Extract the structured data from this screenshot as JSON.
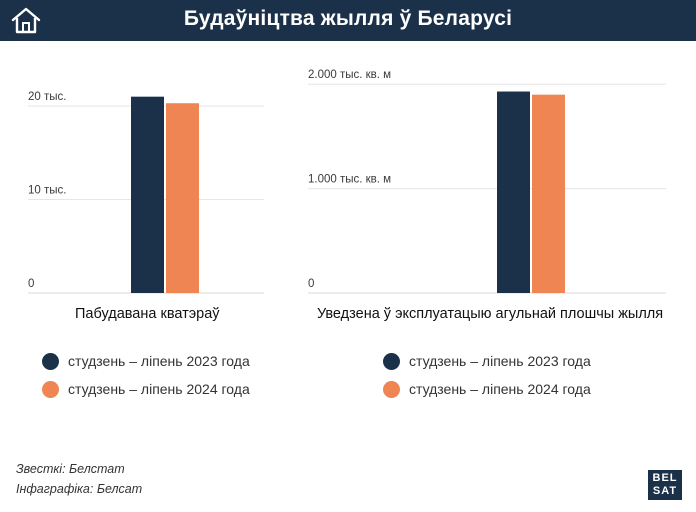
{
  "header": {
    "title": "Будаўніцтва жылля ў Беларусі",
    "home_icon": "home-icon"
  },
  "colors": {
    "header_bg": "#1b3149",
    "series_2023": "#1b3149",
    "series_2024": "#ee8552"
  },
  "chart_data": [
    {
      "type": "bar",
      "title": "Пабудавана кватэраў",
      "categories": [
        ""
      ],
      "series": [
        {
          "name": "студзень – ліпень 2023 года",
          "values": [
            21000
          ]
        },
        {
          "name": "студзень – ліпень 2024 года",
          "values": [
            20300
          ]
        }
      ],
      "ylim": [
        0,
        21500
      ],
      "yticks": [
        0,
        10000,
        20000
      ],
      "ytick_labels": [
        "0",
        "10 тыс.",
        "20 тыс."
      ],
      "xlabel": "",
      "ylabel": "",
      "grid": true
    },
    {
      "type": "bar",
      "title": "Уведзена ў эксплуатацыю агульнай плошчы жылля",
      "categories": [
        ""
      ],
      "series": [
        {
          "name": "студзень – ліпень 2023 года",
          "values": [
            1930
          ]
        },
        {
          "name": "студзень – ліпень 2024 года",
          "values": [
            1900
          ]
        }
      ],
      "ylim": [
        0,
        2050
      ],
      "yticks": [
        0,
        1000,
        2000
      ],
      "ytick_labels": [
        "0",
        "1.000 тыс. кв. м",
        "2.000 тыс. кв. м"
      ],
      "xlabel": "",
      "ylabel": "",
      "grid": true
    }
  ],
  "legends": [
    [
      "студзень – ліпень 2023 года",
      "студзень – ліпень 2024 года"
    ],
    [
      "студзень – ліпень 2023 года",
      "студзень – ліпень 2024 года"
    ]
  ],
  "footer": {
    "source": "Звесткі: Белстат",
    "infographic": "Інфаграфіка: Белсат",
    "logo_top": "BEL",
    "logo_bottom": "SAT"
  }
}
